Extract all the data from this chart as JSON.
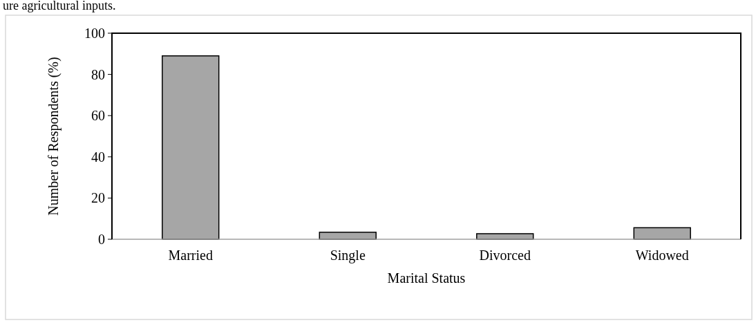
{
  "chart_data": {
    "type": "bar",
    "xlabel": "Marital Status",
    "ylabel": "Number of Respondents (%)",
    "categories": [
      "Married",
      "Single",
      "Divorced",
      "Widowed"
    ],
    "values": [
      89,
      3.4,
      2.7,
      5.6
    ],
    "color": "#a6a6a6",
    "ylim": [
      0,
      100
    ],
    "yticks": [
      0,
      20,
      40,
      60,
      80,
      100
    ],
    "grid": false,
    "annotations": [
      "ure agricultural inputs."
    ]
  }
}
